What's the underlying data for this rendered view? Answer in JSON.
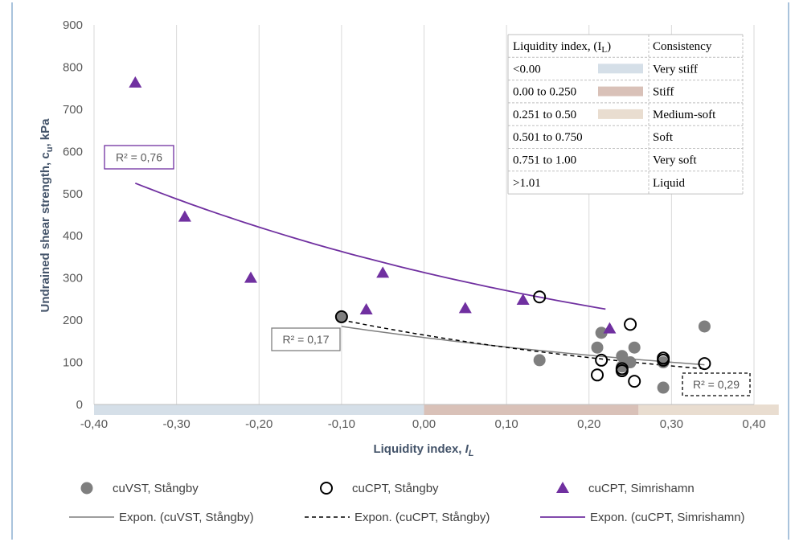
{
  "chart_data": {
    "type": "scatter",
    "xlabel_main": "Liquidity index, ",
    "xlabel_sub": "I",
    "xlabel_subscript": "L",
    "ylabel_main": "Undrained shear strength, c",
    "ylabel_sub": "u",
    "ylabel_tail": ", kPa",
    "xlim": [
      -0.4,
      0.4
    ],
    "ylim": [
      0,
      900
    ],
    "x_ticks": [
      -0.4,
      -0.3,
      -0.2,
      -0.1,
      0.0,
      0.1,
      0.2,
      0.3,
      0.4
    ],
    "x_tick_labels": [
      "-0,40",
      "-0,30",
      "-0,20",
      "-0,10",
      "0,00",
      "0,10",
      "0,20",
      "0,30",
      "0,40"
    ],
    "y_ticks": [
      0,
      100,
      200,
      300,
      400,
      500,
      600,
      700,
      800,
      900
    ],
    "y_tick_labels": [
      "0",
      "100",
      "200",
      "300",
      "400",
      "500",
      "600",
      "700",
      "800",
      "900"
    ],
    "grid": "vertical",
    "legend_position": "bottom",
    "series": [
      {
        "name": "cuVST, Stångby",
        "marker": "filled-circle",
        "color": "#7f7f7f",
        "points": [
          [
            -0.1,
            208
          ],
          [
            0.14,
            105
          ],
          [
            0.21,
            135
          ],
          [
            0.215,
            170
          ],
          [
            0.24,
            115
          ],
          [
            0.24,
            90
          ],
          [
            0.25,
            100
          ],
          [
            0.255,
            135
          ],
          [
            0.29,
            100
          ],
          [
            0.29,
            40
          ],
          [
            0.34,
            185
          ]
        ]
      },
      {
        "name": "cuCPT, Stångby",
        "marker": "open-circle",
        "color": "#000000",
        "points": [
          [
            -0.1,
            208
          ],
          [
            0.14,
            255
          ],
          [
            0.21,
            70
          ],
          [
            0.215,
            105
          ],
          [
            0.24,
            85
          ],
          [
            0.24,
            80
          ],
          [
            0.25,
            190
          ],
          [
            0.255,
            55
          ],
          [
            0.29,
            110
          ],
          [
            0.29,
            105
          ],
          [
            0.34,
            97
          ]
        ]
      },
      {
        "name": "cuCPT, Simrishamn",
        "marker": "triangle",
        "color": "#7030a0",
        "points": [
          [
            -0.35,
            763
          ],
          [
            -0.29,
            445
          ],
          [
            -0.21,
            300
          ],
          [
            -0.07,
            225
          ],
          [
            -0.05,
            312
          ],
          [
            0.05,
            228
          ],
          [
            0.12,
            248
          ],
          [
            0.225,
            180
          ]
        ]
      }
    ],
    "trendlines": [
      {
        "name": "Expon. (cuVST, Stångby)",
        "color": "#7f7f7f",
        "dash": "solid",
        "a": 158.8,
        "b": -1.536,
        "x_range": [
          -0.1,
          0.34
        ],
        "r2_label": "R² = 0,17"
      },
      {
        "name": "Expon. (cuCPT, Stångby)",
        "color": "#000000",
        "dash": "dashed",
        "a": 164.7,
        "b": -1.962,
        "x_range": [
          -0.1,
          0.34
        ],
        "r2_label": "R² = 0,29"
      },
      {
        "name": "Expon. (cuCPT, Simrishamn)",
        "color": "#7030a0",
        "dash": "solid",
        "a": 313.0,
        "b": -1.476,
        "x_range": [
          -0.35,
          0.22
        ],
        "r2_label": "R² = 0,76"
      }
    ],
    "bands": [
      {
        "from": -0.4,
        "to": 0.0,
        "color": "#d5dfe8"
      },
      {
        "from": 0.0,
        "to": 0.26,
        "color": "#d9c1b8"
      },
      {
        "from": 0.26,
        "to": 0.43,
        "color": "#e9ddd0"
      }
    ],
    "consistency_table": {
      "header": [
        "Liquidity index, (I",
        "L",
        ")",
        "Consistency"
      ],
      "rows": [
        {
          "range": "<0.00",
          "consistency": "Very stiff",
          "swatch": "#d5dfe8"
        },
        {
          "range": "0.00 to 0.250",
          "consistency": "Stiff",
          "swatch": "#d9c1b8"
        },
        {
          "range": "0.251 to 0.50",
          "consistency": "Medium-soft",
          "swatch": "#e9ddd0"
        },
        {
          "range": "0.501 to 0.750",
          "consistency": "Soft",
          "swatch": ""
        },
        {
          "range": "0.751 to 1.00",
          "consistency": "Very soft",
          "swatch": ""
        },
        {
          "range": ">1.01",
          "consistency": "Liquid",
          "swatch": ""
        }
      ]
    }
  }
}
